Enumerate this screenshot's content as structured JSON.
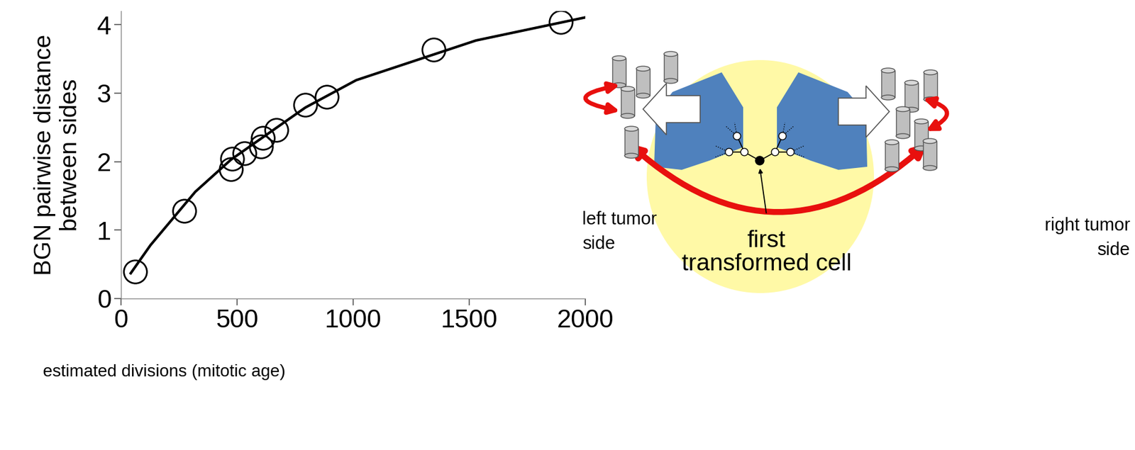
{
  "chart_data": {
    "type": "line",
    "xlabel": "estimated divisions (mitotic age)",
    "ylabel": "BGN pairwise distance\nbetween sides",
    "xlim": [
      0,
      2000
    ],
    "xticks": [
      0,
      500,
      1000,
      1500,
      2000
    ],
    "ylim": [
      0,
      4.2
    ],
    "yticks": [
      0,
      1,
      2,
      3,
      4
    ],
    "grid": false,
    "series": [
      {
        "type": "line",
        "color": "#000000",
        "line_style": "solid",
        "x": [
          42,
          127,
          320,
          474,
          794,
          1013,
          1529,
          2032
        ],
        "values": [
          0.37,
          0.78,
          1.56,
          2.03,
          2.79,
          3.19,
          3.77,
          4.13
        ]
      },
      {
        "type": "scatter",
        "color": "#000000",
        "marker": "o",
        "x": [
          61,
          272,
          474,
          479,
          532,
          603,
          611,
          669,
          794,
          886,
          1347,
          1894
        ],
        "values": [
          0.39,
          1.28,
          1.89,
          2.04,
          2.12,
          2.22,
          2.35,
          2.46,
          2.83,
          2.95,
          3.64,
          4.04
        ]
      }
    ]
  },
  "diagram": {
    "labels": {
      "left": "left tumor\nside",
      "right": "right tumor\nside",
      "origin": "first\ntransformed cell"
    }
  }
}
